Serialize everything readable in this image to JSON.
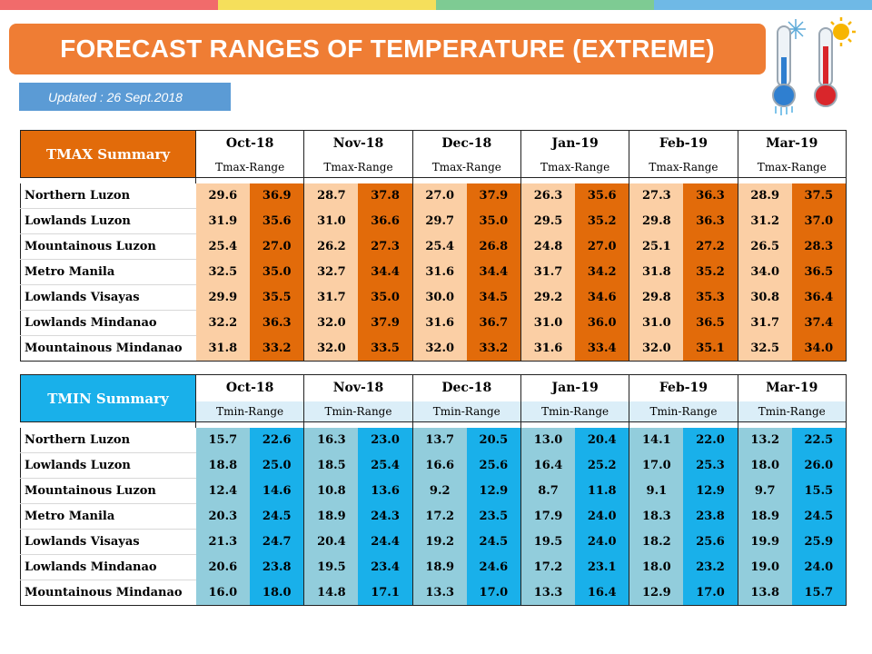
{
  "title": "FORECAST RANGES OF TEMPERATURE (EXTREME)",
  "updated": "Updated : 26 Sept.2018",
  "months": [
    "Oct-18",
    "Nov-18",
    "Dec-18",
    "Jan-19",
    "Feb-19",
    "Mar-19"
  ],
  "colors": {
    "orange": "#e26b0a",
    "orange_light": "#fbcfa5",
    "blue": "#19b0ea",
    "blue_light": "#92cddc",
    "title_bg": "#ef7d34"
  },
  "icons": [
    "cold-thermometer-icon",
    "hot-thermometer-icon"
  ],
  "tmax": {
    "label": "TMAX Summary",
    "range_label": "Tmax-Range",
    "rows": [
      {
        "name": "Northern Luzon",
        "values": [
          "29.6",
          "36.9",
          "28.7",
          "37.8",
          "27.0",
          "37.9",
          "26.3",
          "35.6",
          "27.3",
          "36.3",
          "28.9",
          "37.5"
        ]
      },
      {
        "name": "Lowlands Luzon",
        "values": [
          "31.9",
          "35.6",
          "31.0",
          "36.6",
          "29.7",
          "35.0",
          "29.5",
          "35.2",
          "29.8",
          "36.3",
          "31.2",
          "37.0"
        ]
      },
      {
        "name": "Mountainous Luzon",
        "values": [
          "25.4",
          "27.0",
          "26.2",
          "27.3",
          "25.4",
          "26.8",
          "24.8",
          "27.0",
          "25.1",
          "27.2",
          "26.5",
          "28.3"
        ]
      },
      {
        "name": "Metro Manila",
        "values": [
          "32.5",
          "35.0",
          "32.7",
          "34.4",
          "31.6",
          "34.4",
          "31.7",
          "34.2",
          "31.8",
          "35.2",
          "34.0",
          "36.5"
        ]
      },
      {
        "name": "Lowlands Visayas",
        "values": [
          "29.9",
          "35.5",
          "31.7",
          "35.0",
          "30.0",
          "34.5",
          "29.2",
          "34.6",
          "29.8",
          "35.3",
          "30.8",
          "36.4"
        ]
      },
      {
        "name": "Lowlands Mindanao",
        "values": [
          "32.2",
          "36.3",
          "32.0",
          "37.9",
          "31.6",
          "36.7",
          "31.0",
          "36.0",
          "31.0",
          "36.5",
          "31.7",
          "37.4"
        ]
      },
      {
        "name": "Mountainous Mindanao",
        "values": [
          "31.8",
          "33.2",
          "32.0",
          "33.5",
          "32.0",
          "33.2",
          "31.6",
          "33.4",
          "32.0",
          "35.1",
          "32.5",
          "34.0"
        ]
      }
    ]
  },
  "tmin": {
    "label": "TMIN Summary",
    "range_label": "Tmin-Range",
    "rows": [
      {
        "name": "Northern Luzon",
        "values": [
          "15.7",
          "22.6",
          "16.3",
          "23.0",
          "13.7",
          "20.5",
          "13.0",
          "20.4",
          "14.1",
          "22.0",
          "13.2",
          "22.5"
        ]
      },
      {
        "name": "Lowlands Luzon",
        "values": [
          "18.8",
          "25.0",
          "18.5",
          "25.4",
          "16.6",
          "25.6",
          "16.4",
          "25.2",
          "17.0",
          "25.3",
          "18.0",
          "26.0"
        ]
      },
      {
        "name": "Mountainous Luzon",
        "values": [
          "12.4",
          "14.6",
          "10.8",
          "13.6",
          "9.2",
          "12.9",
          "8.7",
          "11.8",
          "9.1",
          "12.9",
          "9.7",
          "15.5"
        ]
      },
      {
        "name": "Metro Manila",
        "values": [
          "20.3",
          "24.5",
          "18.9",
          "24.3",
          "17.2",
          "23.5",
          "17.9",
          "24.0",
          "18.3",
          "23.8",
          "18.9",
          "24.5"
        ]
      },
      {
        "name": "Lowlands Visayas",
        "values": [
          "21.3",
          "24.7",
          "20.4",
          "24.4",
          "19.2",
          "24.5",
          "19.5",
          "24.0",
          "18.2",
          "25.6",
          "19.9",
          "25.9"
        ]
      },
      {
        "name": "Lowlands Mindanao",
        "values": [
          "20.6",
          "23.8",
          "19.5",
          "23.4",
          "18.9",
          "24.6",
          "17.2",
          "23.1",
          "18.0",
          "23.2",
          "19.0",
          "24.0"
        ]
      },
      {
        "name": "Mountainous Mindanao",
        "values": [
          "16.0",
          "18.0",
          "14.8",
          "17.1",
          "13.3",
          "17.0",
          "13.3",
          "16.4",
          "12.9",
          "17.0",
          "13.8",
          "15.7"
        ]
      }
    ]
  }
}
